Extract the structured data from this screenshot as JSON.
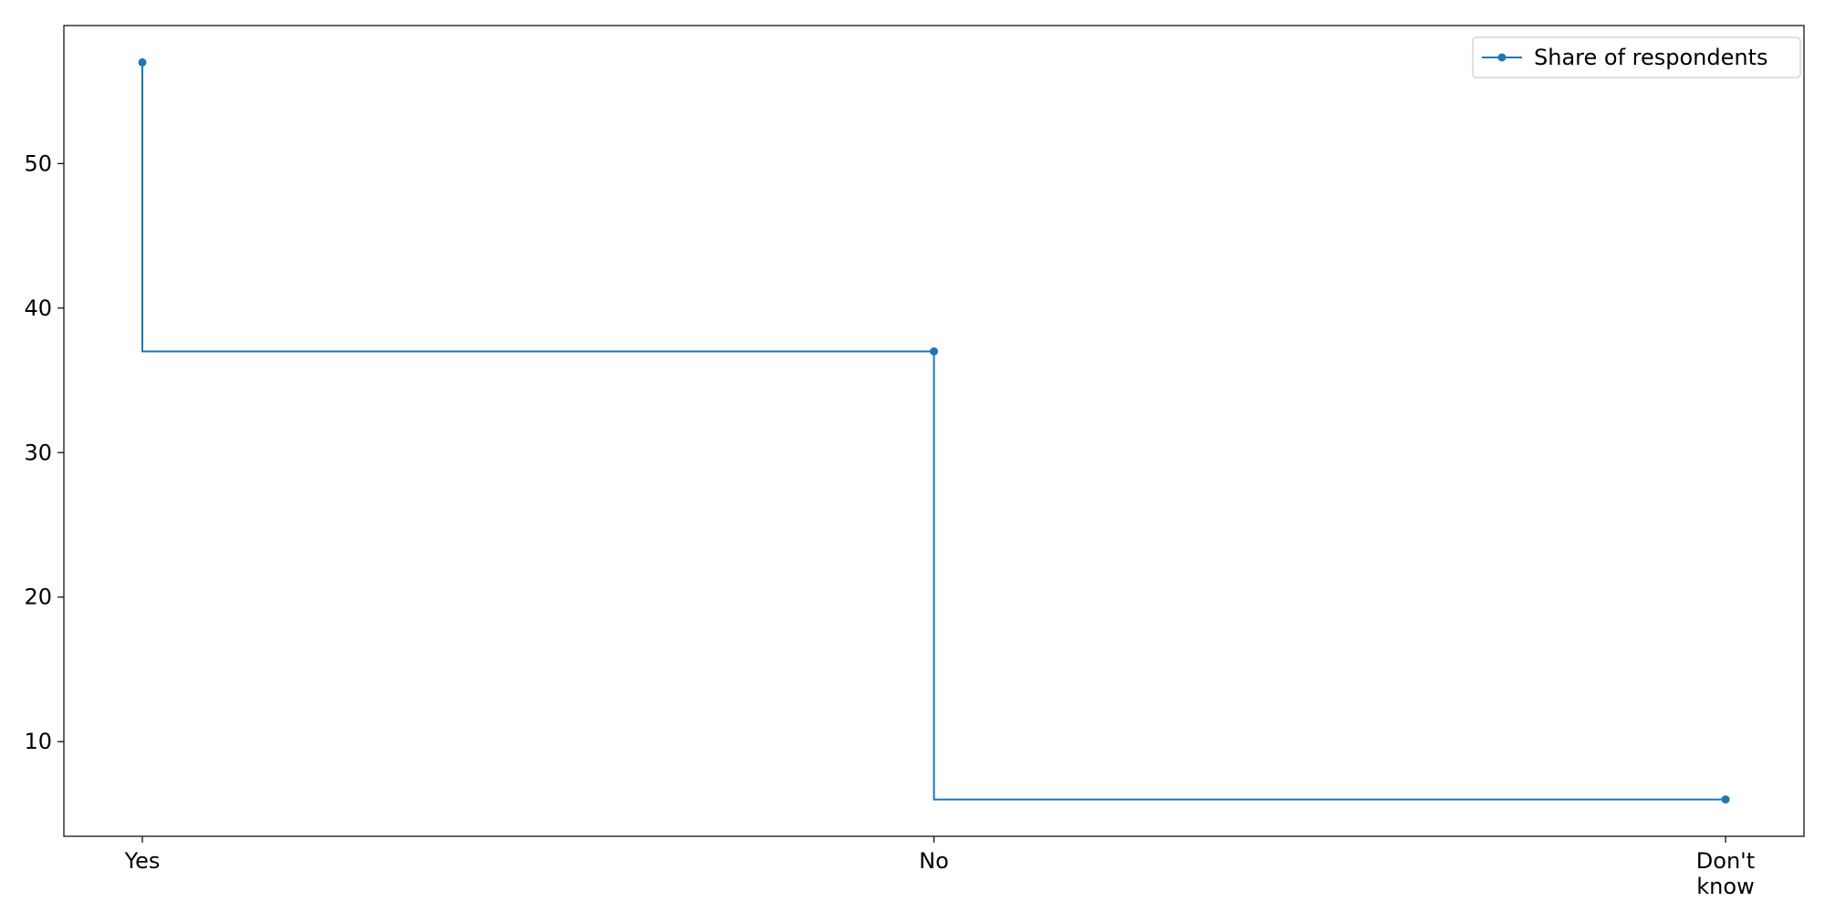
{
  "chart_data": {
    "type": "line",
    "step": "pre",
    "categories": [
      "Yes",
      "No",
      "Don't\nknow"
    ],
    "series": [
      {
        "name": "Share of respondents",
        "values": [
          57,
          37,
          6
        ],
        "color": "#1f77b4",
        "marker": "circle"
      }
    ],
    "yticks": [
      10,
      20,
      30,
      40,
      50
    ],
    "ylim": [
      3.45,
      59.55
    ],
    "grid": false,
    "legend": "top-right",
    "title": "",
    "xlabel": "",
    "ylabel": ""
  }
}
